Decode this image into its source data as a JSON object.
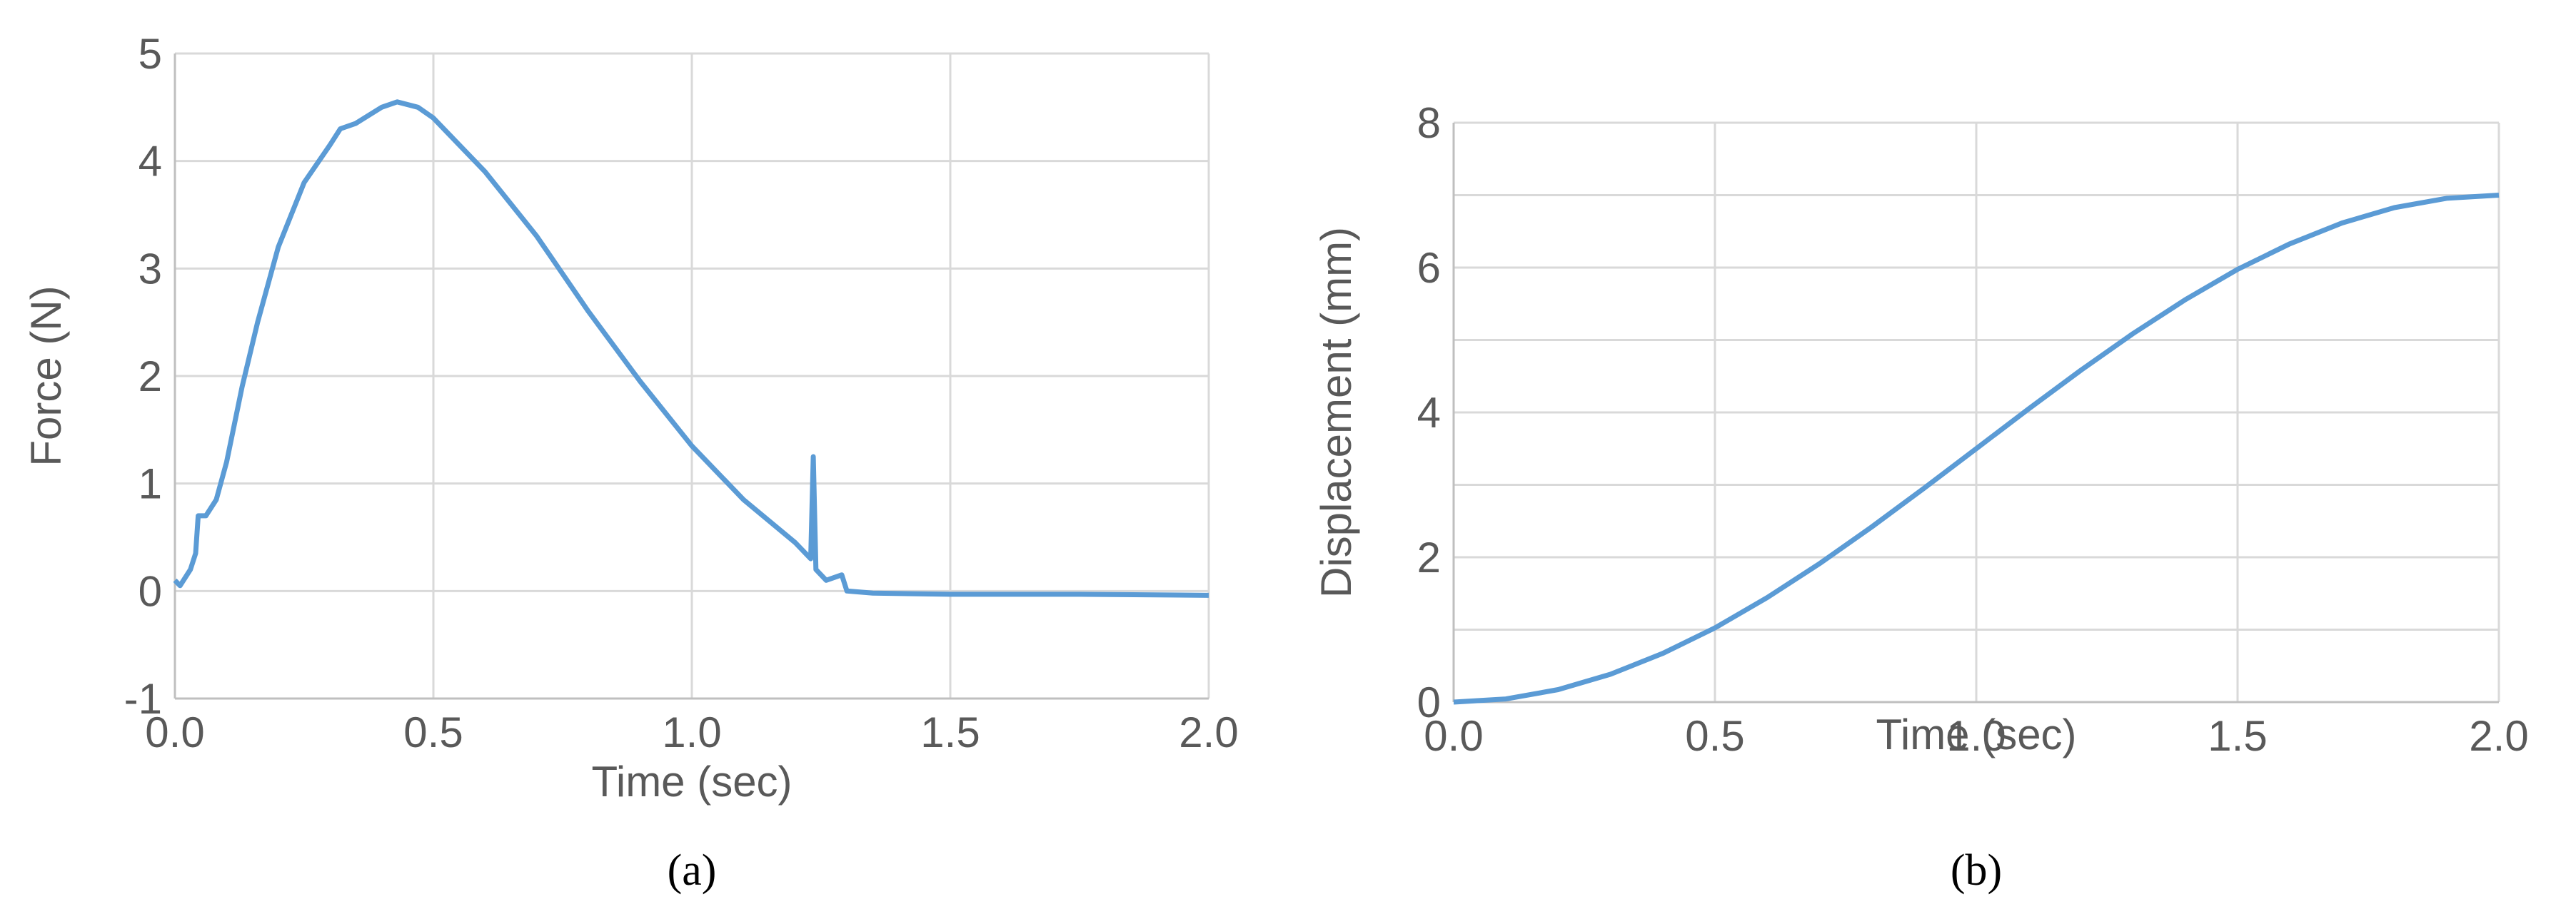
{
  "chart_data": [
    {
      "type": "line",
      "caption": "(a)",
      "xlabel": "Time (sec)",
      "ylabel": "Force (N)",
      "color": "#5b9bd5",
      "grid": true,
      "xlim": [
        0,
        2
      ],
      "xticks": [
        {
          "value": 0,
          "label": "0.0"
        },
        0.5,
        {
          "value": 1,
          "label": "1.0"
        },
        1.5,
        {
          "value": 2,
          "label": "2.0"
        }
      ],
      "ylim": [
        -1,
        5
      ],
      "yticks": [
        -1,
        0,
        1,
        2,
        3,
        4,
        5
      ],
      "x": [
        0,
        0.01,
        0.03,
        0.04,
        0.045,
        0.06,
        0.08,
        0.1,
        0.13,
        0.16,
        0.2,
        0.25,
        0.3,
        0.32,
        0.35,
        0.4,
        0.43,
        0.47,
        0.5,
        0.6,
        0.7,
        0.8,
        0.9,
        1.0,
        1.1,
        1.2,
        1.23,
        1.235,
        1.24,
        1.26,
        1.29,
        1.3,
        1.35,
        1.5,
        1.75,
        2.0
      ],
      "values": [
        0.1,
        0.05,
        0.2,
        0.35,
        0.7,
        0.7,
        0.85,
        1.2,
        1.9,
        2.5,
        3.2,
        3.8,
        4.15,
        4.3,
        4.35,
        4.5,
        4.55,
        4.5,
        4.4,
        3.9,
        3.3,
        2.6,
        1.95,
        1.35,
        0.85,
        0.45,
        0.3,
        1.25,
        0.2,
        0.1,
        0.15,
        0.0,
        -0.02,
        -0.03,
        -0.03,
        -0.04
      ]
    },
    {
      "type": "line",
      "caption": "(b)",
      "xlabel": "Time (sec)",
      "ylabel": "Displacement (mm)",
      "color": "#5b9bd5",
      "grid": true,
      "xlim": [
        0,
        2
      ],
      "xticks": [
        {
          "value": 0,
          "label": "0.0"
        },
        0.5,
        {
          "value": 1,
          "label": "1.0"
        },
        1.5,
        {
          "value": 2,
          "label": "2.0"
        }
      ],
      "ylim": [
        0,
        8
      ],
      "yticks": [
        0,
        2,
        4,
        6,
        8
      ],
      "yminor_grid": [
        1,
        3,
        5,
        7
      ],
      "x": [
        0,
        0.1,
        0.2,
        0.3,
        0.4,
        0.5,
        0.6,
        0.7,
        0.8,
        0.9,
        1.0,
        1.1,
        1.2,
        1.3,
        1.4,
        1.5,
        1.6,
        1.7,
        1.8,
        1.9,
        2.0
      ],
      "values": [
        0,
        0.043,
        0.172,
        0.384,
        0.672,
        1.025,
        1.443,
        1.911,
        2.419,
        2.953,
        3.5,
        4.047,
        4.581,
        5.089,
        5.557,
        5.975,
        6.328,
        6.616,
        6.828,
        6.957,
        7.0
      ]
    }
  ]
}
